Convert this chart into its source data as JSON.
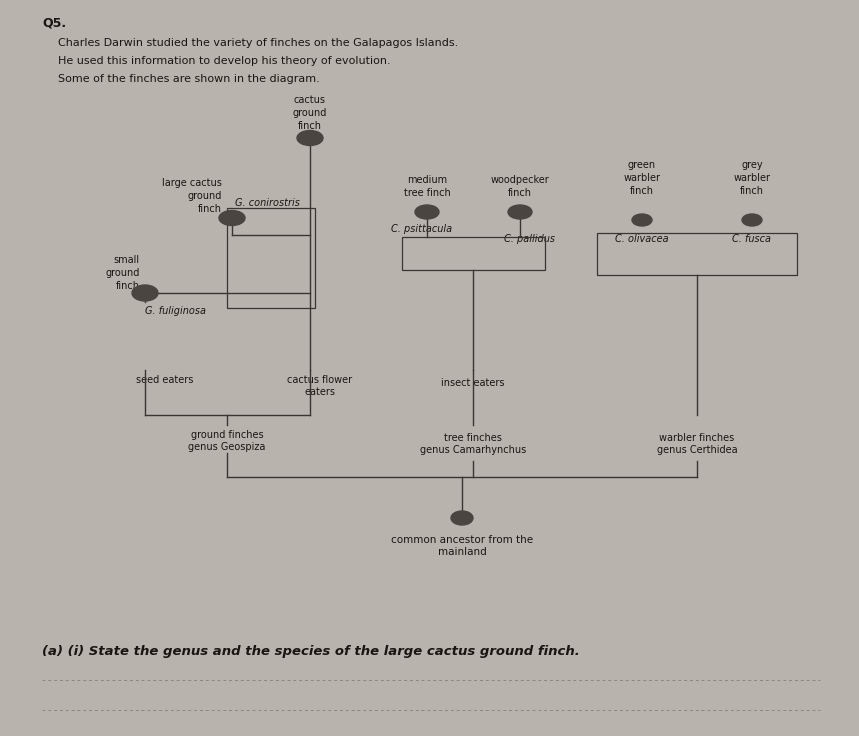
{
  "background_color": "#b8b4ad",
  "title_text": "Q5.",
  "intro_lines": [
    "Charles Darwin studied the variety of finches on the Galapagos Islands.",
    "He used this information to develop his theory of evolution.",
    "Some of the finches are shown in the diagram."
  ],
  "question_text": "(a) (i) State the genus and the species of the large cactus ground finch.",
  "line_color": "#3a3530",
  "text_color": "#1a1510",
  "bird_color": "#4a4540",
  "species": {
    "G_conirostris": "G. conirostris",
    "G_fuliginosa": "G. fuliginosa",
    "C_psittacula": "C. psittacula",
    "C_pallidus": "C. pallidus",
    "C_olivacea": "C. olivacea",
    "C_fusca": "C. fusca"
  },
  "groups": {
    "seed_eaters": "seed eaters",
    "cactus_flower": "cactus flower\neaters",
    "insect_eaters": "insect eaters",
    "ground_finches": "ground finches\ngenus Geospiza",
    "tree_finches": "tree finches\ngenus Camarhynchus",
    "warbler_finches": "warbler finches\ngenus Certhidea"
  },
  "ancestor": "common ancestor from the\nmainland"
}
